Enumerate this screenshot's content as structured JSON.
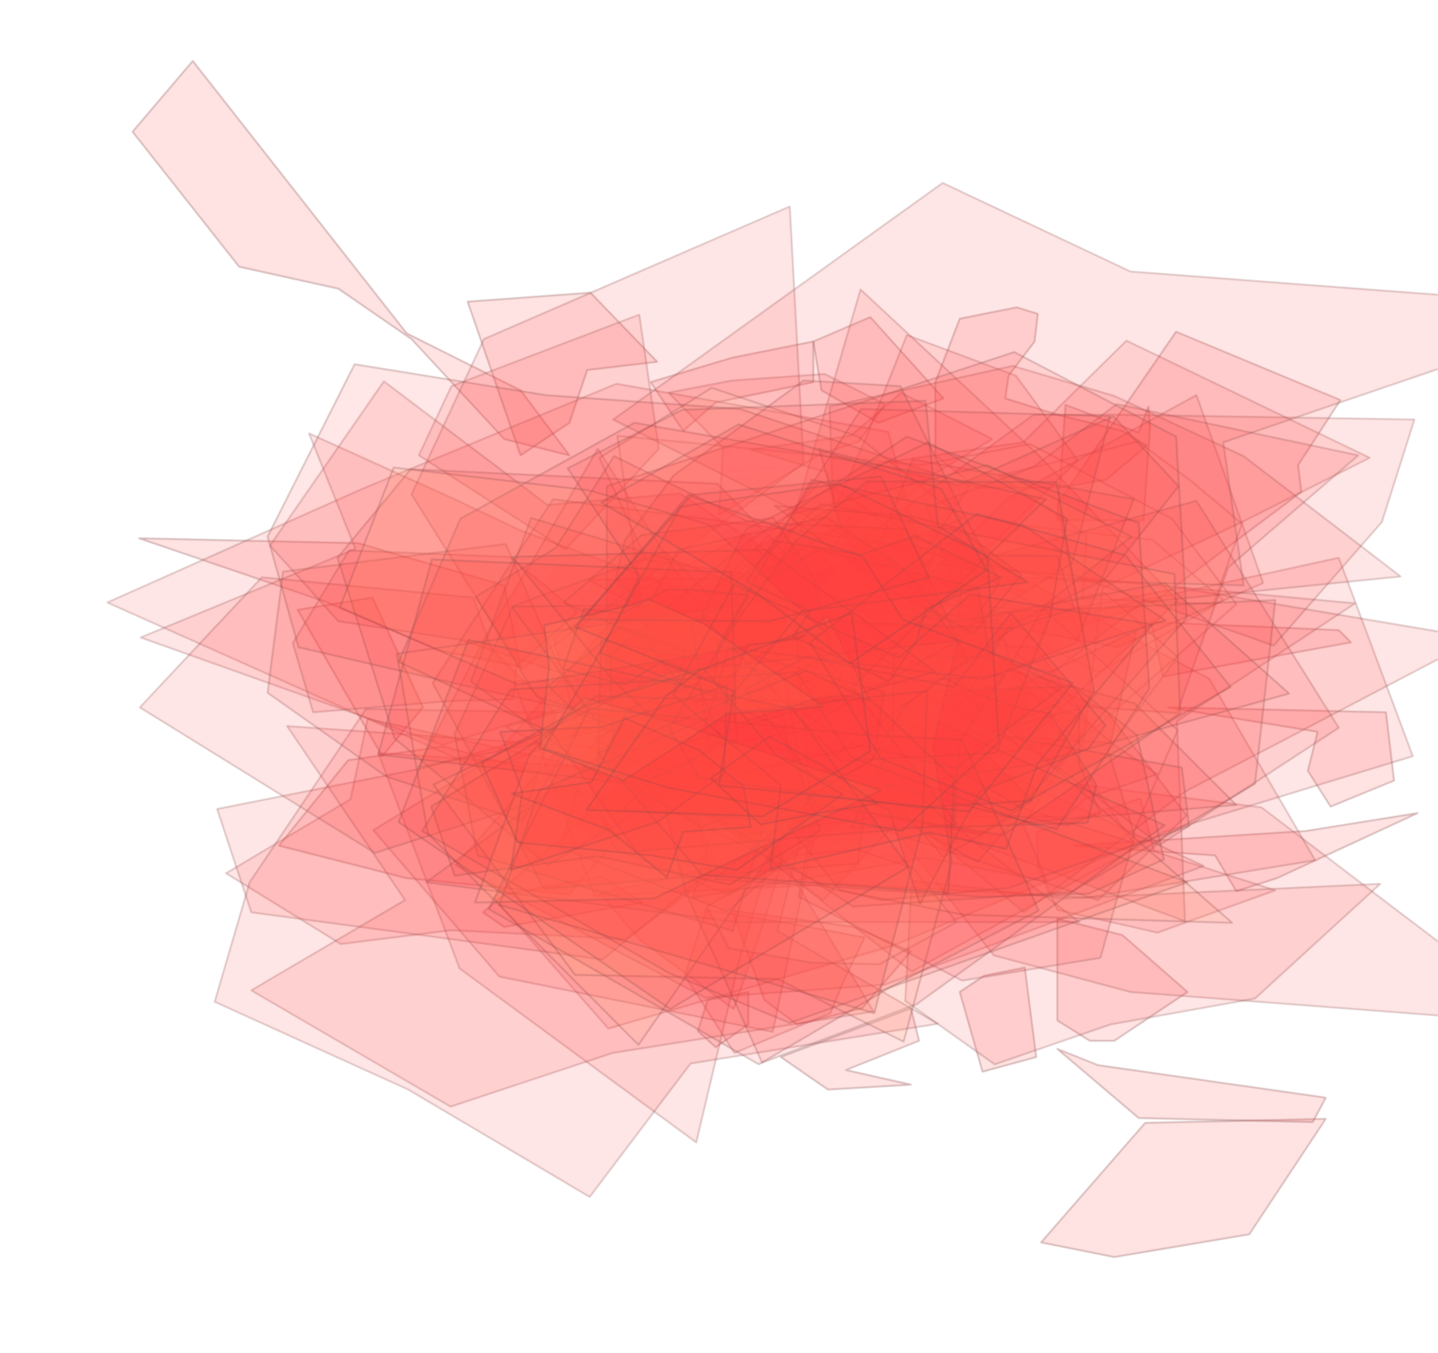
{
  "map": {
    "style": "overlapping translucent catchment polygons",
    "background_color": "#ffffff",
    "fill_color_primary": "#ff3b3b",
    "fill_color_secondary": "#ff9a66",
    "fill_color_tertiary": "#ffd2a8",
    "stroke_color": "#8a4a4a",
    "layers": [
      {
        "id": "regions-outer"
      },
      {
        "id": "regions-mid"
      },
      {
        "id": "regions-core"
      }
    ]
  }
}
